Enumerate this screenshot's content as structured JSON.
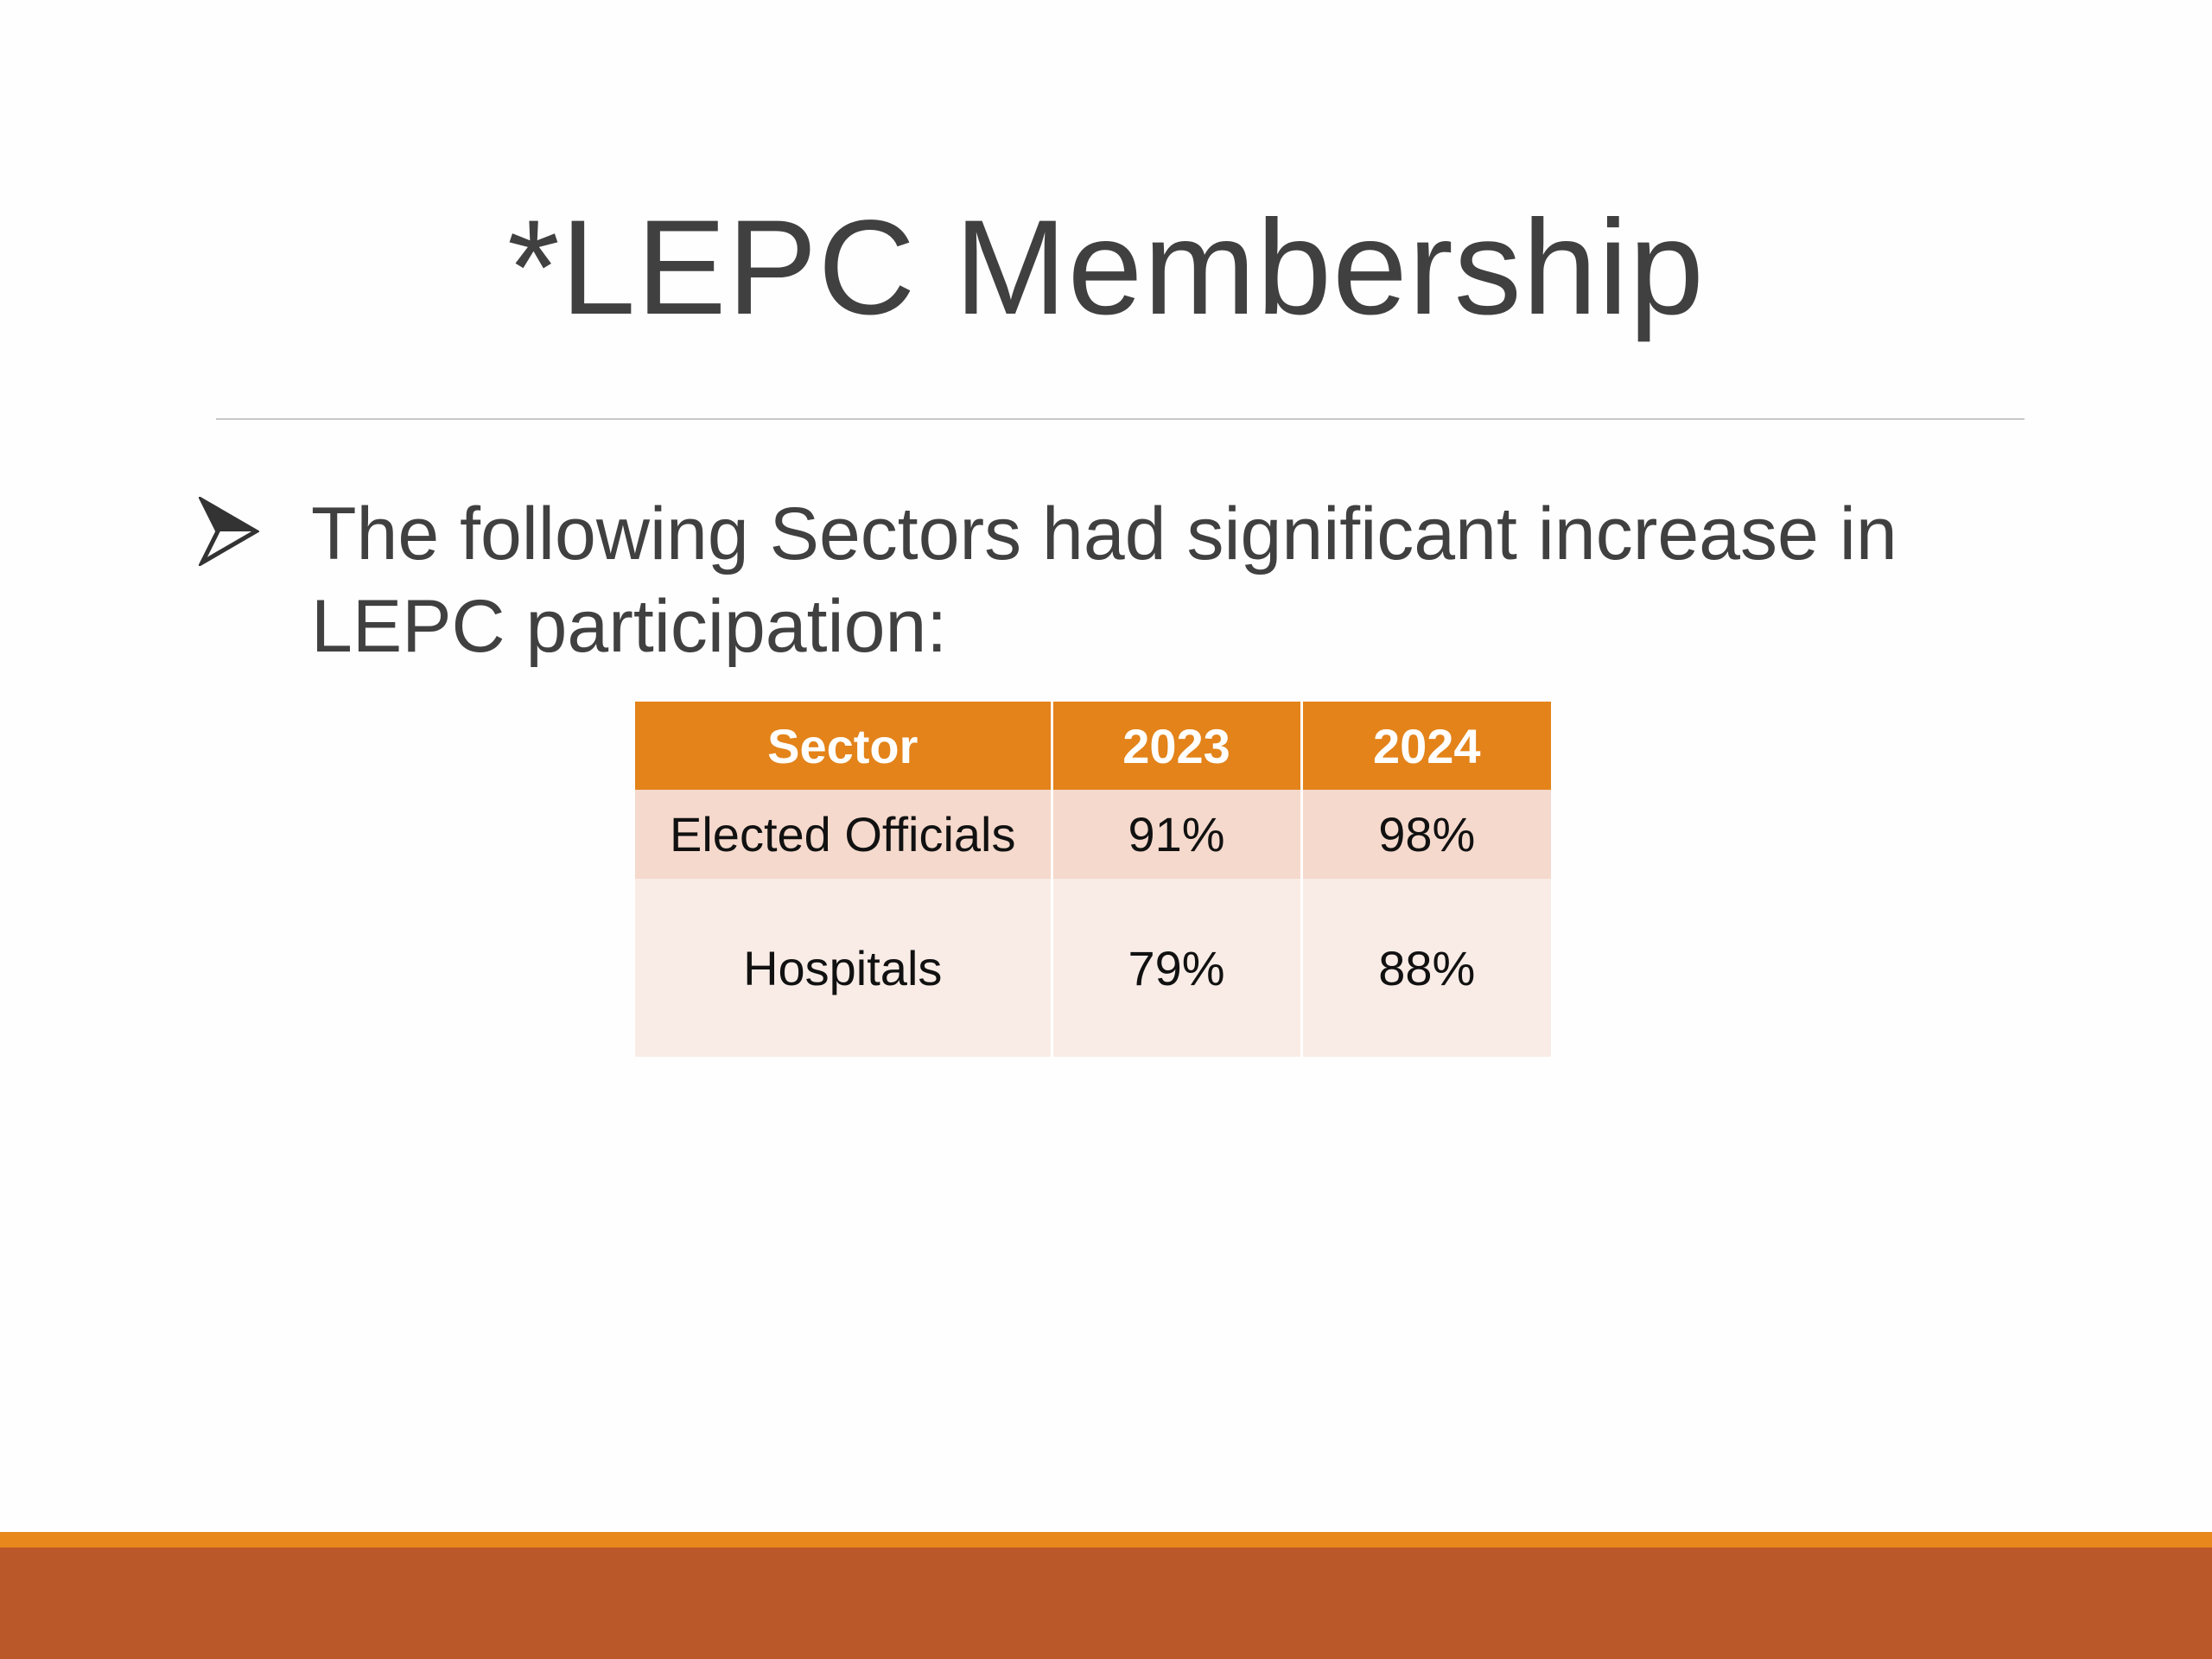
{
  "slide": {
    "title": "*LEPC Membership",
    "bullet": {
      "icon": "arrow-bullet-icon",
      "line1": "The following Sectors had significant increase in",
      "line2": "LEPC participation:"
    },
    "table": {
      "headers": [
        "Sector",
        "2023",
        "2024"
      ],
      "rows": [
        [
          "Elected Officials",
          "91%",
          "98%"
        ],
        [
          "Hospitals",
          "79%",
          "88%"
        ]
      ]
    }
  },
  "colors": {
    "header": "#e3831a",
    "row_odd": "#f5d9cc",
    "row_even": "#f9ece6",
    "footer_thin": "#e8871c",
    "footer_thick": "#bb582a",
    "text": "#404040"
  }
}
